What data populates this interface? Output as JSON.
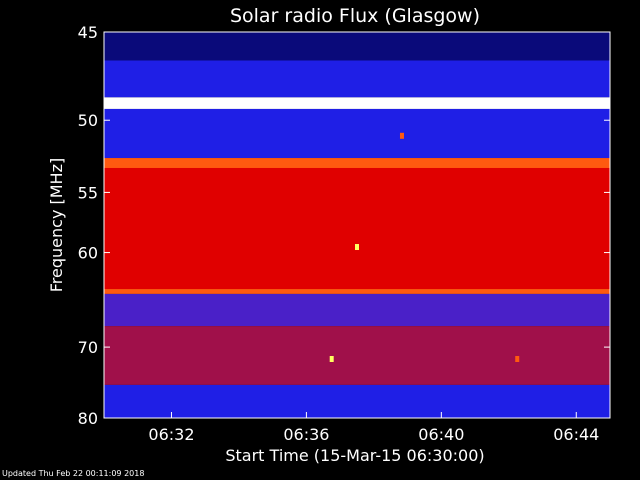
{
  "chart_data": {
    "type": "heatmap",
    "title": "Solar radio Flux (Glasgow)",
    "xlabel": "Start Time (15-Mar-15 06:30:00)",
    "ylabel": "Frequency [MHz]",
    "x_unit": "minutes",
    "xlim": [
      "06:30:00",
      "06:45:00"
    ],
    "ylim": [
      45,
      80
    ],
    "y_scale": "reciprocal",
    "x_ticks": [
      "06:32",
      "06:36",
      "06:40",
      "06:44"
    ],
    "y_ticks": [
      45,
      50,
      55,
      60,
      70,
      80
    ],
    "colormap": [
      "#000000",
      "#1a1aff",
      "#b000c8",
      "#e00000",
      "#ff6a00",
      "#ffff40",
      "#ffffff"
    ],
    "frequency_bands": [
      {
        "from": 45.0,
        "to": 46.5,
        "level": "dark-blue"
      },
      {
        "from": 46.5,
        "to": 48.6,
        "level": "blue"
      },
      {
        "from": 48.6,
        "to": 49.3,
        "level": "white"
      },
      {
        "from": 49.3,
        "to": 52.5,
        "level": "blue"
      },
      {
        "from": 52.5,
        "to": 53.2,
        "level": "orange"
      },
      {
        "from": 53.2,
        "to": 63.5,
        "level": "red"
      },
      {
        "from": 63.5,
        "to": 64.0,
        "level": "orange"
      },
      {
        "from": 64.0,
        "to": 67.5,
        "level": "blue-purple"
      },
      {
        "from": 67.5,
        "to": 75.0,
        "level": "purple-red"
      },
      {
        "from": 75.0,
        "to": 80.0,
        "level": "blue"
      }
    ],
    "bursts": [
      {
        "time": "06:37:30",
        "freq": 59.5,
        "level": "yellow"
      },
      {
        "time": "06:36:45",
        "freq": 71.5,
        "level": "yellow"
      },
      {
        "time": "06:42:15",
        "freq": 71.5,
        "level": "orange"
      },
      {
        "time": "06:38:50",
        "freq": 51.0,
        "level": "orange"
      }
    ]
  },
  "footer": {
    "updated": "Updated Thu Feb 22 00:11:09 2018"
  }
}
